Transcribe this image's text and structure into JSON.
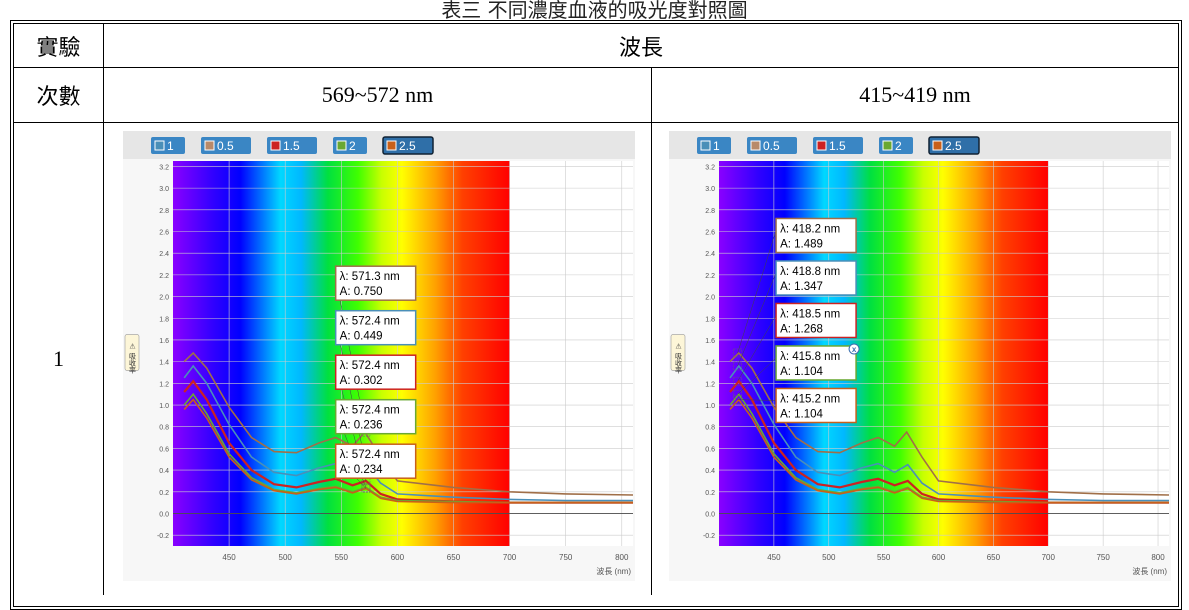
{
  "caption": "表三 不同濃度血液的吸光度對照圖",
  "table": {
    "header_trial": "實驗",
    "header_count": "次數",
    "header_wavelength": "波長",
    "col1": "569~572 nm",
    "col2": "415~419 nm",
    "row1": "1"
  },
  "legend": [
    {
      "label": "1",
      "color": "#4a8fb8"
    },
    {
      "label": "0.5",
      "color": "#b88a6a"
    },
    {
      "label": "1.5",
      "color": "#cc2222"
    },
    {
      "label": "2",
      "color": "#6aa832"
    },
    {
      "label": "2.5",
      "color": "#c8601a"
    }
  ],
  "chart_data": [
    {
      "type": "line",
      "xlabel": "波長 (nm)",
      "ylabel": "吸收率",
      "xlim": [
        400,
        810
      ],
      "ylim": [
        -0.3,
        3.25
      ],
      "xticks": [
        450,
        500,
        550,
        600,
        650,
        700,
        750,
        800
      ],
      "yticks": [
        -0.2,
        0.0,
        0.2,
        0.4,
        0.6,
        0.8,
        1.0,
        1.2,
        1.4,
        1.6,
        1.8,
        2.0,
        2.2,
        2.4,
        2.6,
        2.8,
        3.0,
        3.2
      ],
      "peaks": [
        {
          "lambda": "λ: 571.3 nm",
          "A": "A: 0.750"
        },
        {
          "lambda": "λ: 572.4 nm",
          "A": "A: 0.449"
        },
        {
          "lambda": "λ: 572.4 nm",
          "A": "A: 0.302"
        },
        {
          "lambda": "λ: 572.4 nm",
          "A": "A: 0.236"
        },
        {
          "lambda": "λ: 572.4 nm",
          "A": "A: 0.234"
        }
      ],
      "series": [
        {
          "color": "#a06f48",
          "x": [
            410,
            418,
            430,
            450,
            470,
            490,
            510,
            530,
            545,
            560,
            571,
            585,
            600,
            650,
            700,
            750,
            810
          ],
          "y": [
            1.4,
            1.48,
            1.34,
            0.98,
            0.7,
            0.57,
            0.56,
            0.65,
            0.7,
            0.62,
            0.75,
            0.52,
            0.3,
            0.24,
            0.2,
            0.18,
            0.17
          ]
        },
        {
          "color": "#4a8fb8",
          "x": [
            410,
            418,
            430,
            450,
            470,
            490,
            510,
            530,
            545,
            560,
            572,
            585,
            600,
            650,
            700,
            750,
            810
          ],
          "y": [
            1.25,
            1.36,
            1.2,
            0.82,
            0.52,
            0.38,
            0.35,
            0.42,
            0.46,
            0.38,
            0.45,
            0.28,
            0.18,
            0.15,
            0.13,
            0.12,
            0.12
          ]
        },
        {
          "color": "#cc2222",
          "x": [
            410,
            418,
            430,
            450,
            470,
            490,
            510,
            530,
            545,
            560,
            572,
            585,
            600,
            650,
            700,
            750,
            810
          ],
          "y": [
            1.12,
            1.22,
            1.05,
            0.65,
            0.4,
            0.27,
            0.24,
            0.29,
            0.32,
            0.26,
            0.3,
            0.18,
            0.13,
            0.11,
            0.1,
            0.1,
            0.1
          ]
        },
        {
          "color": "#6aa832",
          "x": [
            410,
            418,
            430,
            450,
            470,
            490,
            510,
            530,
            545,
            560,
            572,
            585,
            600,
            650,
            700,
            750,
            810
          ],
          "y": [
            1.0,
            1.1,
            0.92,
            0.55,
            0.33,
            0.22,
            0.19,
            0.23,
            0.25,
            0.2,
            0.24,
            0.15,
            0.12,
            0.11,
            0.1,
            0.1,
            0.1
          ]
        },
        {
          "color": "#c8601a",
          "x": [
            410,
            418,
            430,
            450,
            470,
            490,
            510,
            530,
            545,
            560,
            572,
            585,
            600,
            650,
            700,
            750,
            810
          ],
          "y": [
            0.96,
            1.05,
            0.88,
            0.52,
            0.31,
            0.21,
            0.18,
            0.22,
            0.24,
            0.19,
            0.23,
            0.14,
            0.11,
            0.1,
            0.1,
            0.1,
            0.1
          ]
        }
      ]
    },
    {
      "type": "line",
      "xlabel": "波長 (nm)",
      "ylabel": "吸收率",
      "xlim": [
        400,
        810
      ],
      "ylim": [
        -0.3,
        3.25
      ],
      "xticks": [
        450,
        500,
        550,
        600,
        650,
        700,
        750,
        800
      ],
      "yticks": [
        -0.2,
        0.0,
        0.2,
        0.4,
        0.6,
        0.8,
        1.0,
        1.2,
        1.4,
        1.6,
        1.8,
        2.0,
        2.2,
        2.4,
        2.6,
        2.8,
        3.0,
        3.2
      ],
      "peaks": [
        {
          "lambda": "λ: 418.2 nm",
          "A": "A: 1.489"
        },
        {
          "lambda": "λ: 418.8 nm",
          "A": "A: 1.347"
        },
        {
          "lambda": "λ: 418.5 nm",
          "A": "A: 1.268"
        },
        {
          "lambda": "λ: 415.8 nm",
          "A": "A: 1.104"
        },
        {
          "lambda": "λ: 415.2 nm",
          "A": "A: 1.104"
        }
      ],
      "series": [
        {
          "color": "#a06f48",
          "x": [
            410,
            418,
            430,
            450,
            470,
            490,
            510,
            530,
            545,
            560,
            571,
            585,
            600,
            650,
            700,
            750,
            810
          ],
          "y": [
            1.4,
            1.48,
            1.34,
            0.98,
            0.7,
            0.57,
            0.56,
            0.65,
            0.7,
            0.62,
            0.75,
            0.52,
            0.3,
            0.24,
            0.2,
            0.18,
            0.17
          ]
        },
        {
          "color": "#4a8fb8",
          "x": [
            410,
            418,
            430,
            450,
            470,
            490,
            510,
            530,
            545,
            560,
            572,
            585,
            600,
            650,
            700,
            750,
            810
          ],
          "y": [
            1.25,
            1.36,
            1.2,
            0.82,
            0.52,
            0.38,
            0.35,
            0.42,
            0.46,
            0.38,
            0.45,
            0.28,
            0.18,
            0.15,
            0.13,
            0.12,
            0.12
          ]
        },
        {
          "color": "#cc2222",
          "x": [
            410,
            418,
            430,
            450,
            470,
            490,
            510,
            530,
            545,
            560,
            572,
            585,
            600,
            650,
            700,
            750,
            810
          ],
          "y": [
            1.12,
            1.22,
            1.05,
            0.65,
            0.4,
            0.27,
            0.24,
            0.29,
            0.32,
            0.26,
            0.3,
            0.18,
            0.13,
            0.11,
            0.1,
            0.1,
            0.1
          ]
        },
        {
          "color": "#6aa832",
          "x": [
            410,
            418,
            430,
            450,
            470,
            490,
            510,
            530,
            545,
            560,
            572,
            585,
            600,
            650,
            700,
            750,
            810
          ],
          "y": [
            1.0,
            1.1,
            0.92,
            0.55,
            0.33,
            0.22,
            0.19,
            0.23,
            0.25,
            0.2,
            0.24,
            0.15,
            0.12,
            0.11,
            0.1,
            0.1,
            0.1
          ]
        },
        {
          "color": "#c8601a",
          "x": [
            410,
            418,
            430,
            450,
            470,
            490,
            510,
            530,
            545,
            560,
            572,
            585,
            600,
            650,
            700,
            750,
            810
          ],
          "y": [
            0.96,
            1.05,
            0.88,
            0.52,
            0.31,
            0.21,
            0.18,
            0.22,
            0.24,
            0.19,
            0.23,
            0.14,
            0.11,
            0.1,
            0.1,
            0.1,
            0.1
          ]
        }
      ]
    }
  ]
}
